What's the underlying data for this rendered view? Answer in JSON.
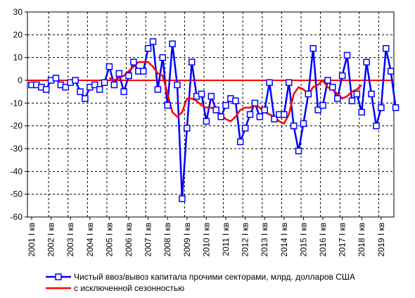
{
  "chart_data": {
    "type": "line",
    "ylim": [
      -60,
      30
    ],
    "yticks": [
      30,
      20,
      10,
      0,
      -10,
      -20,
      -30,
      -40,
      -50,
      -60
    ],
    "x_tick_labels": [
      "2001 I кв",
      "2002 I кв",
      "2003 I кв",
      "2004 I кв",
      "2005 I кв",
      "2006 I кв",
      "2007 I кв",
      "2008 I кв",
      "2009 I кв",
      "2010 I кв",
      "2011 I кв",
      "2012 I кв",
      "2013 I кв",
      "2014 I кв",
      "2015 I кв",
      "2016 I кв",
      "2017 I кв",
      "2018 I кв",
      "2019 I кв"
    ],
    "grid": true,
    "legend_position": "bottom",
    "series": [
      {
        "name": "Чистый ввоз/вывоз капитала прочими секторами, млрд. долларов США",
        "color": "#0000ff",
        "marker": "square",
        "values": [
          -2,
          -2,
          -3,
          -4,
          0,
          1,
          -2,
          -3,
          -1,
          0,
          -5,
          -8,
          -3,
          -2,
          -4,
          -1,
          6,
          -2,
          3,
          -5,
          2,
          8,
          4,
          4,
          14,
          17,
          -4,
          10,
          -11,
          16,
          -2,
          -52,
          -21,
          8,
          -7,
          -6,
          -18,
          -7,
          -13,
          -16,
          -11,
          -8,
          -9,
          -27,
          -21,
          -15,
          -10,
          -16,
          -13,
          -1,
          -17,
          -15,
          -15,
          -1,
          -20,
          -31,
          -19,
          -6,
          14,
          -13,
          -11,
          0,
          -3,
          -8,
          2,
          11,
          -9,
          -6,
          -14,
          8,
          -6,
          -20,
          -12,
          14,
          4,
          -12
        ]
      },
      {
        "name": "с исключенной сезонностью",
        "color": "#ff0000",
        "values": [
          null,
          null,
          null,
          null,
          null,
          null,
          null,
          null,
          null,
          null,
          null,
          null,
          null,
          null,
          null,
          null,
          1,
          0,
          1,
          2,
          4,
          6,
          8,
          8,
          8,
          6,
          3,
          2,
          -6,
          -14,
          -16,
          -14,
          -8,
          -8,
          -9,
          -11,
          -12,
          -12,
          -13,
          -15,
          -17,
          -18,
          -16,
          -13,
          -12,
          -12,
          -11,
          -12,
          -14,
          -15,
          -16,
          -18,
          -19,
          -15,
          -6,
          -3,
          -4,
          -6,
          -3,
          -2,
          0,
          -3,
          -4,
          -6,
          -8,
          -7,
          -5,
          -4,
          -2
        ]
      }
    ],
    "reference_line": {
      "y": 0,
      "color": "#ff0000"
    }
  }
}
